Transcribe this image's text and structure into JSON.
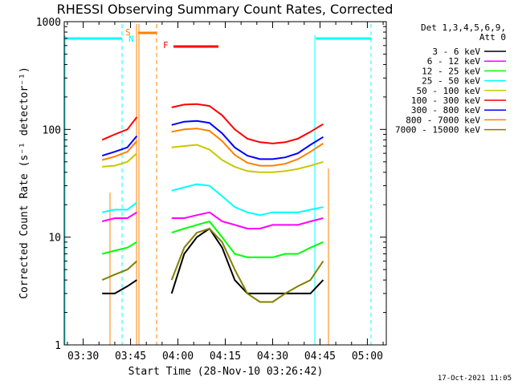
{
  "chart_data": {
    "type": "line",
    "title": "RHESSI Observing Summary Count Rates, Corrected",
    "xlabel": "Start Time (28-Nov-10 03:26:42)",
    "ylabel": "Corrected Count Rate (s⁻¹ detector⁻¹)",
    "y_scale": "log",
    "ylim": [
      1,
      1000
    ],
    "xlim": [
      "03:24",
      "05:06"
    ],
    "x_ticks": [
      "03:30",
      "03:45",
      "04:00",
      "04:15",
      "04:30",
      "04:45",
      "05:00"
    ],
    "y_ticks": [
      "1",
      "10",
      "100",
      "1000"
    ],
    "grid": false,
    "legend_header": [
      "Det 1,3,4,5,6,9,",
      "Att 0"
    ],
    "legend_position": "top-right",
    "timestamp": "17-Oct-2021 11:05",
    "markers": [
      {
        "label": "S",
        "color": "#ff8000",
        "start": "03:46",
        "end": "03:51"
      },
      {
        "label": "N",
        "color": "#00ffff"
      },
      {
        "label": "F",
        "color": "#ff0000",
        "start": "04:04",
        "end": "04:15"
      }
    ],
    "x": [
      "03:36",
      "03:40",
      "03:44",
      "03:47",
      "03:58",
      "04:02",
      "04:06",
      "04:10",
      "04:14",
      "04:18",
      "04:22",
      "04:26",
      "04:30",
      "04:34",
      "04:38",
      "04:42",
      "04:46"
    ],
    "series": [
      {
        "name": "3 - 6 keV",
        "color": "#000000",
        "values": [
          3,
          3,
          3.5,
          4,
          3,
          7,
          10,
          12,
          8,
          4,
          3,
          3,
          3,
          3,
          3,
          3,
          4
        ]
      },
      {
        "name": "6 - 12 keV",
        "color": "#ff00ff",
        "values": [
          14,
          15,
          15,
          17,
          15,
          15,
          16,
          17,
          14,
          13,
          12,
          12,
          13,
          13,
          13,
          14,
          15
        ]
      },
      {
        "name": "12 - 25 keV",
        "color": "#00ff00",
        "values": [
          7,
          7.5,
          8,
          9,
          11,
          12,
          13,
          14,
          10,
          7,
          6.5,
          6.5,
          6.5,
          7,
          7,
          8,
          9
        ]
      },
      {
        "name": "25 - 50 keV",
        "color": "#00ffff",
        "values": [
          17,
          18,
          18,
          21,
          27,
          29,
          31,
          30,
          24,
          19,
          17,
          16,
          17,
          17,
          17,
          18,
          19
        ]
      },
      {
        "name": "50 - 100 keV",
        "color": "#c8c800",
        "values": [
          45,
          46,
          50,
          60,
          68,
          70,
          72,
          65,
          52,
          45,
          41,
          40,
          40,
          41,
          43,
          46,
          50
        ]
      },
      {
        "name": "100 - 300 keV",
        "color": "#ff0000",
        "values": [
          80,
          90,
          100,
          130,
          160,
          170,
          172,
          165,
          135,
          100,
          82,
          76,
          74,
          76,
          82,
          95,
          112
        ]
      },
      {
        "name": "300 - 800 keV",
        "color": "#0000ff",
        "values": [
          57,
          62,
          68,
          87,
          110,
          118,
          120,
          115,
          92,
          68,
          57,
          53,
          53,
          55,
          60,
          72,
          85
        ]
      },
      {
        "name": "800 - 7000 keV",
        "color": "#ff8000",
        "values": [
          52,
          56,
          62,
          78,
          95,
          100,
          102,
          97,
          78,
          58,
          49,
          46,
          46,
          48,
          53,
          62,
          74
        ]
      },
      {
        "name": "7000 - 15000 keV",
        "color": "#808000",
        "values": [
          4,
          4.5,
          5,
          6,
          4,
          8,
          11,
          12,
          9,
          5,
          3,
          2.5,
          2.5,
          3,
          3.5,
          4,
          6
        ]
      }
    ]
  }
}
